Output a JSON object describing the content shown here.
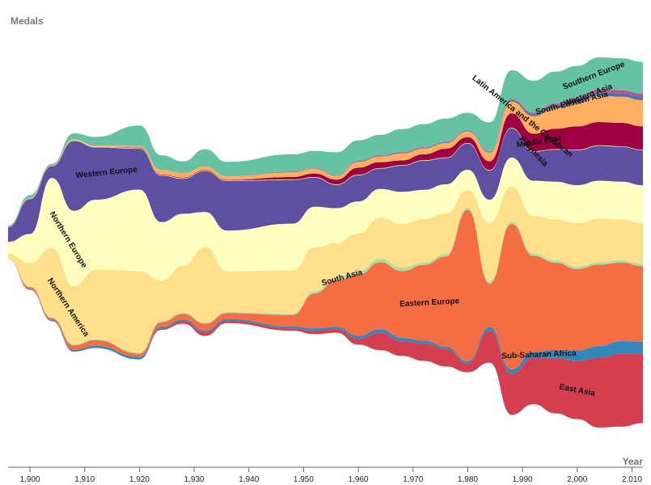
{
  "chart_data": {
    "type": "area",
    "ylabel": "Medals",
    "xlabel": "Year",
    "x_ticks": [
      "1,900",
      "1,910",
      "1,920",
      "1,930",
      "1,940",
      "1,950",
      "1,960",
      "1,970",
      "1,980",
      "1,990",
      "2,000",
      "2,010"
    ],
    "x_domain": [
      1896,
      2012
    ],
    "years": [
      1896,
      1900,
      1904,
      1908,
      1912,
      1920,
      1924,
      1928,
      1932,
      1936,
      1948,
      1952,
      1956,
      1960,
      1964,
      1968,
      1972,
      1976,
      1980,
      1984,
      1988,
      1992,
      1996,
      2000,
      2004,
      2008,
      2012
    ],
    "series": [
      {
        "name": "East Asia",
        "color": "#d53e4f",
        "values": [
          0,
          0,
          0,
          0,
          0,
          0,
          2,
          4,
          6,
          4,
          4,
          6,
          6,
          10,
          30,
          25,
          30,
          30,
          15,
          55,
          70,
          80,
          95,
          100,
          120,
          125,
          120
        ]
      },
      {
        "name": "Sub-Saharan Africa",
        "color": "#3288bd",
        "values": [
          0,
          1,
          2,
          3,
          4,
          4,
          3,
          3,
          3,
          3,
          3,
          4,
          4,
          5,
          6,
          6,
          5,
          4,
          4,
          6,
          8,
          10,
          14,
          18,
          20,
          22,
          20
        ]
      },
      {
        "name": "Eastern Europe",
        "color": "#f46d43",
        "values": [
          0,
          4,
          3,
          8,
          10,
          6,
          8,
          10,
          12,
          10,
          20,
          60,
          80,
          105,
          115,
          115,
          130,
          155,
          260,
          75,
          250,
          165,
          150,
          140,
          140,
          135,
          130
        ]
      },
      {
        "name": "South Asia",
        "color": "#abdda4",
        "values": [
          0,
          1,
          1,
          1,
          1,
          2,
          2,
          2,
          2,
          2,
          2,
          4,
          4,
          6,
          6,
          6,
          4,
          4,
          4,
          4,
          4,
          4,
          4,
          4,
          4,
          4,
          4
        ]
      },
      {
        "name": "Northern America",
        "color": "#fee08b",
        "values": [
          10,
          40,
          120,
          100,
          120,
          140,
          70,
          80,
          130,
          70,
          75,
          75,
          60,
          65,
          70,
          75,
          75,
          70,
          30,
          100,
          60,
          65,
          70,
          75,
          75,
          70,
          70
        ]
      },
      {
        "name": "Northern Europe",
        "color": "#ffffbf",
        "values": [
          20,
          50,
          120,
          130,
          120,
          140,
          100,
          90,
          60,
          70,
          80,
          70,
          60,
          55,
          50,
          55,
          50,
          50,
          35,
          40,
          50,
          60,
          65,
          65,
          65,
          65,
          65
        ]
      },
      {
        "name": "Western Europe",
        "color": "#5e4fa2",
        "values": [
          25,
          60,
          20,
          120,
          90,
          70,
          80,
          60,
          70,
          85,
          75,
          50,
          40,
          45,
          35,
          45,
          50,
          45,
          45,
          50,
          50,
          50,
          55,
          60,
          60,
          60,
          60
        ]
      },
      {
        "name": "Polynesia",
        "color": "#e6f598",
        "values": [
          0,
          0,
          0,
          1,
          1,
          1,
          1,
          1,
          1,
          1,
          1,
          1,
          1,
          1,
          1,
          1,
          1,
          1,
          1,
          1,
          1,
          1,
          1,
          1,
          1,
          1,
          1
        ]
      },
      {
        "name": "Middle East",
        "color": "#9e0142",
        "values": [
          0,
          0,
          0,
          0,
          0,
          1,
          1,
          1,
          1,
          1,
          4,
          6,
          8,
          12,
          10,
          8,
          10,
          15,
          10,
          15,
          25,
          30,
          35,
          40,
          40,
          40,
          40
        ]
      },
      {
        "name": "Latin America and the Caribbean",
        "color": "#fdae61",
        "values": [
          1,
          2,
          2,
          2,
          2,
          3,
          8,
          8,
          6,
          6,
          8,
          8,
          6,
          10,
          10,
          12,
          10,
          10,
          10,
          15,
          20,
          30,
          35,
          40,
          45,
          45,
          45
        ]
      },
      {
        "name": "South-Eastern Asia",
        "color": "#4575b4",
        "values": [
          0,
          0,
          0,
          0,
          0,
          0,
          0,
          0,
          0,
          0,
          0,
          0,
          0,
          1,
          1,
          1,
          1,
          1,
          1,
          1,
          2,
          3,
          4,
          5,
          6,
          6,
          6
        ]
      },
      {
        "name": "Western Asia",
        "color": "#c44d8a",
        "values": [
          0,
          0,
          0,
          0,
          0,
          0,
          0,
          0,
          0,
          0,
          1,
          1,
          1,
          1,
          1,
          1,
          1,
          1,
          1,
          1,
          2,
          3,
          4,
          4,
          5,
          5,
          5
        ]
      },
      {
        "name": "Southern Europe",
        "color": "#66c2a5",
        "values": [
          2,
          5,
          2,
          10,
          15,
          35,
          25,
          20,
          30,
          25,
          30,
          30,
          40,
          35,
          35,
          40,
          40,
          40,
          30,
          50,
          50,
          55,
          55,
          55,
          55,
          55,
          55
        ]
      }
    ],
    "stream_labels": [
      {
        "name": "Southern Europe",
        "year": 2003
      },
      {
        "name": "Western Asia",
        "year": 2002
      },
      {
        "name": "South-Eastern Asia",
        "year": 1999
      },
      {
        "name": "Latin America and the Caribbean",
        "year": 1990
      },
      {
        "name": "Middle East",
        "year": 1993
      },
      {
        "name": "Polynesia",
        "year": 1992
      },
      {
        "name": "Western Europe",
        "year": 1914
      },
      {
        "name": "Northern Europe",
        "year": 1907
      },
      {
        "name": "Northern America",
        "year": 1907
      },
      {
        "name": "South Asia",
        "year": 1957
      },
      {
        "name": "Eastern Europe",
        "year": 1973
      },
      {
        "name": "Sub-Saharan Africa",
        "year": 1993
      },
      {
        "name": "East Asia",
        "year": 2000
      }
    ]
  }
}
